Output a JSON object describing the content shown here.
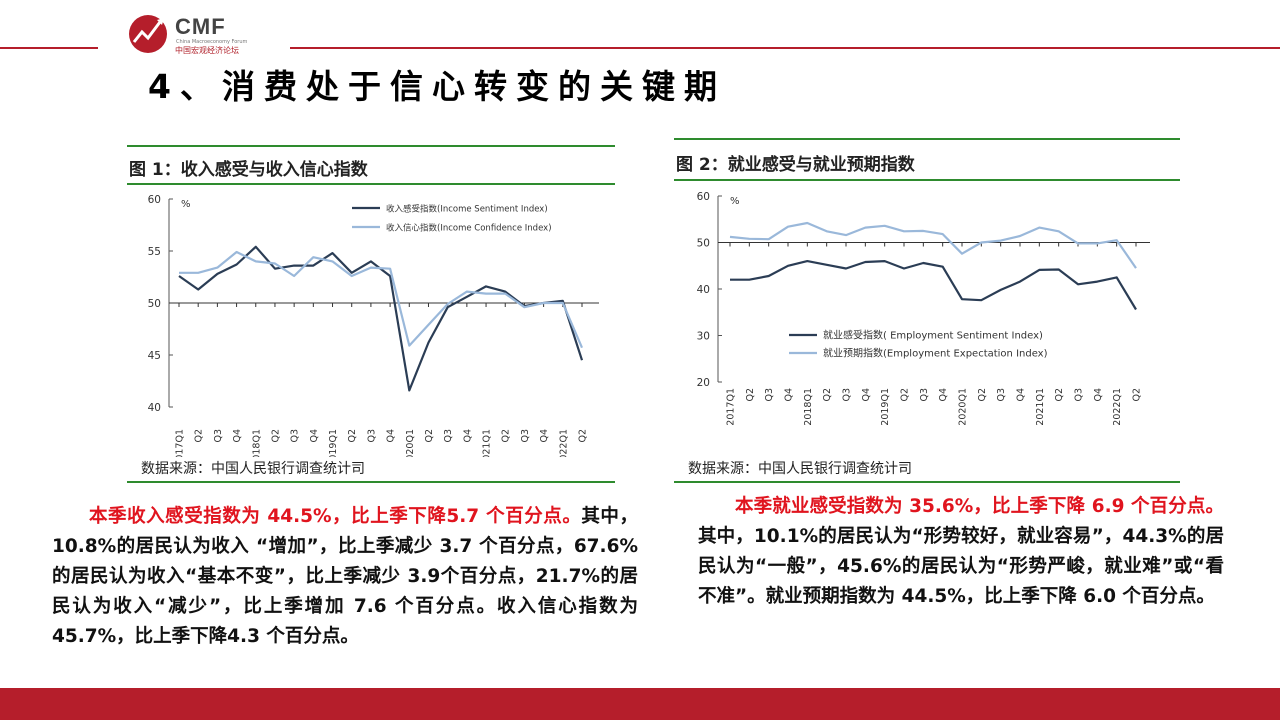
{
  "logo": {
    "name": "CMF",
    "subtitle_en": "China Macroeconomy Forum",
    "subtitle_cn": "中国宏观经济论坛"
  },
  "page": {
    "title": "4、消费处于信心转变的关键期"
  },
  "colors": {
    "dark_series": "#2b3d55",
    "light_series": "#9ab8da",
    "accent": "#b51e2b",
    "rule": "#2e8b2e",
    "highlight": "#e0141e"
  },
  "chart1": {
    "title": "图 1：收入感受与收入信心指数",
    "source": "数据来源：中国人民银行调查统计司",
    "unit": "%",
    "highlight_text": "本季收入感受指数为 44.5%，比上季下降5.7 个百分点。",
    "body_text": "其中，10.8%的居民认为收入 “增加”，比上季减少 3.7 个百分点，67.6% 的居民认为收入“基本不变”，比上季减少 3.9个百分点，21.7%的居民认为收入“减少”，比上季增加 7.6 个百分点。收入信心指数为45.7%，比上季下降4.3 个百分点。"
  },
  "chart2": {
    "title": "图 2：就业感受与就业预期指数",
    "source": "数据来源：中国人民银行调查统计司",
    "unit": "%",
    "highlight_text": "本季就业感受指数为 35.6%，比上季下降 6.9 个百分点。",
    "body_text": "其中，10.1%的居民认为“形势较好，就业容易”，44.3%的居民认为“一般”，45.6%的居民认为“形势严峻，就业难”或“看不准”。就业预期指数为 44.5%，比上季下降 6.0 个百分点。"
  },
  "chart_data": [
    {
      "type": "line",
      "x": [
        "2017Q1",
        "Q2",
        "Q3",
        "Q4",
        "2018Q1",
        "Q2",
        "Q3",
        "Q4",
        "2019Q1",
        "Q2",
        "Q3",
        "Q4",
        "2020Q1",
        "Q2",
        "Q3",
        "Q4",
        "2021Q1",
        "Q2",
        "Q3",
        "Q4",
        "2022Q1",
        "Q2"
      ],
      "series": [
        {
          "name": "收入感受指数(Income Sentiment Index)",
          "values": [
            52.6,
            51.3,
            52.8,
            53.7,
            55.4,
            53.3,
            53.6,
            53.6,
            54.8,
            52.9,
            54.0,
            52.6,
            41.6,
            46.2,
            49.6,
            50.6,
            51.6,
            51.1,
            49.7,
            50.0,
            50.2,
            44.5
          ]
        },
        {
          "name": "收入信心指数(Income Confidence Index)",
          "values": [
            52.9,
            52.9,
            53.4,
            54.9,
            54.0,
            53.8,
            52.6,
            54.4,
            54.0,
            52.6,
            53.4,
            53.3,
            45.9,
            47.9,
            49.9,
            51.1,
            50.9,
            50.9,
            49.6,
            50.0,
            50.0,
            45.7
          ]
        }
      ],
      "ylim": [
        40,
        60
      ],
      "yticks": [
        "40",
        "45",
        "50",
        "55",
        "60"
      ],
      "xticks": [
        "2017Q1",
        "Q2",
        "Q3",
        "Q4",
        "2018Q1",
        "Q2",
        "Q3",
        "Q4",
        "2019Q1",
        "Q2",
        "Q3",
        "Q4",
        "2020Q1",
        "Q2",
        "Q3",
        "Q4",
        "2021Q1",
        "Q2",
        "Q3",
        "Q4",
        "2022Q1",
        "Q2"
      ],
      "reference_line": 50,
      "legend_position": "top-right"
    },
    {
      "type": "line",
      "x": [
        "2017Q1",
        "Q2",
        "Q3",
        "Q4",
        "2018Q1",
        "Q2",
        "Q3",
        "Q4",
        "2019Q1",
        "Q2",
        "Q3",
        "Q4",
        "2020Q1",
        "Q2",
        "Q3",
        "Q4",
        "2021Q1",
        "Q2",
        "Q3",
        "Q4",
        "2022Q1",
        "Q2"
      ],
      "series": [
        {
          "name": "就业感受指数( Employment Sentiment Index)",
          "values": [
            42.0,
            42.0,
            42.8,
            45.0,
            46.0,
            45.2,
            44.4,
            45.8,
            46.0,
            44.4,
            45.6,
            44.8,
            37.8,
            37.6,
            39.8,
            41.6,
            44.1,
            44.2,
            41.0,
            41.6,
            42.5,
            35.6
          ]
        },
        {
          "name": "就业预期指数(Employment Expectation Index)",
          "values": [
            51.2,
            50.8,
            50.7,
            53.4,
            54.2,
            52.4,
            51.6,
            53.2,
            53.6,
            52.4,
            52.5,
            51.8,
            47.6,
            50.0,
            50.4,
            51.4,
            53.2,
            52.4,
            49.8,
            49.8,
            50.5,
            44.5
          ]
        }
      ],
      "ylim": [
        20,
        60
      ],
      "yticks": [
        "20",
        "30",
        "40",
        "50",
        "60"
      ],
      "xticks": [
        "2017Q1",
        "Q2",
        "Q3",
        "Q4",
        "2018Q1",
        "Q2",
        "Q3",
        "Q4",
        "2019Q1",
        "Q2",
        "Q3",
        "Q4",
        "2020Q1",
        "Q2",
        "Q3",
        "Q4",
        "2021Q1",
        "Q2",
        "Q3",
        "Q4",
        "2022Q1",
        "Q2"
      ],
      "reference_line": 50,
      "legend_position": "bottom-right"
    }
  ]
}
